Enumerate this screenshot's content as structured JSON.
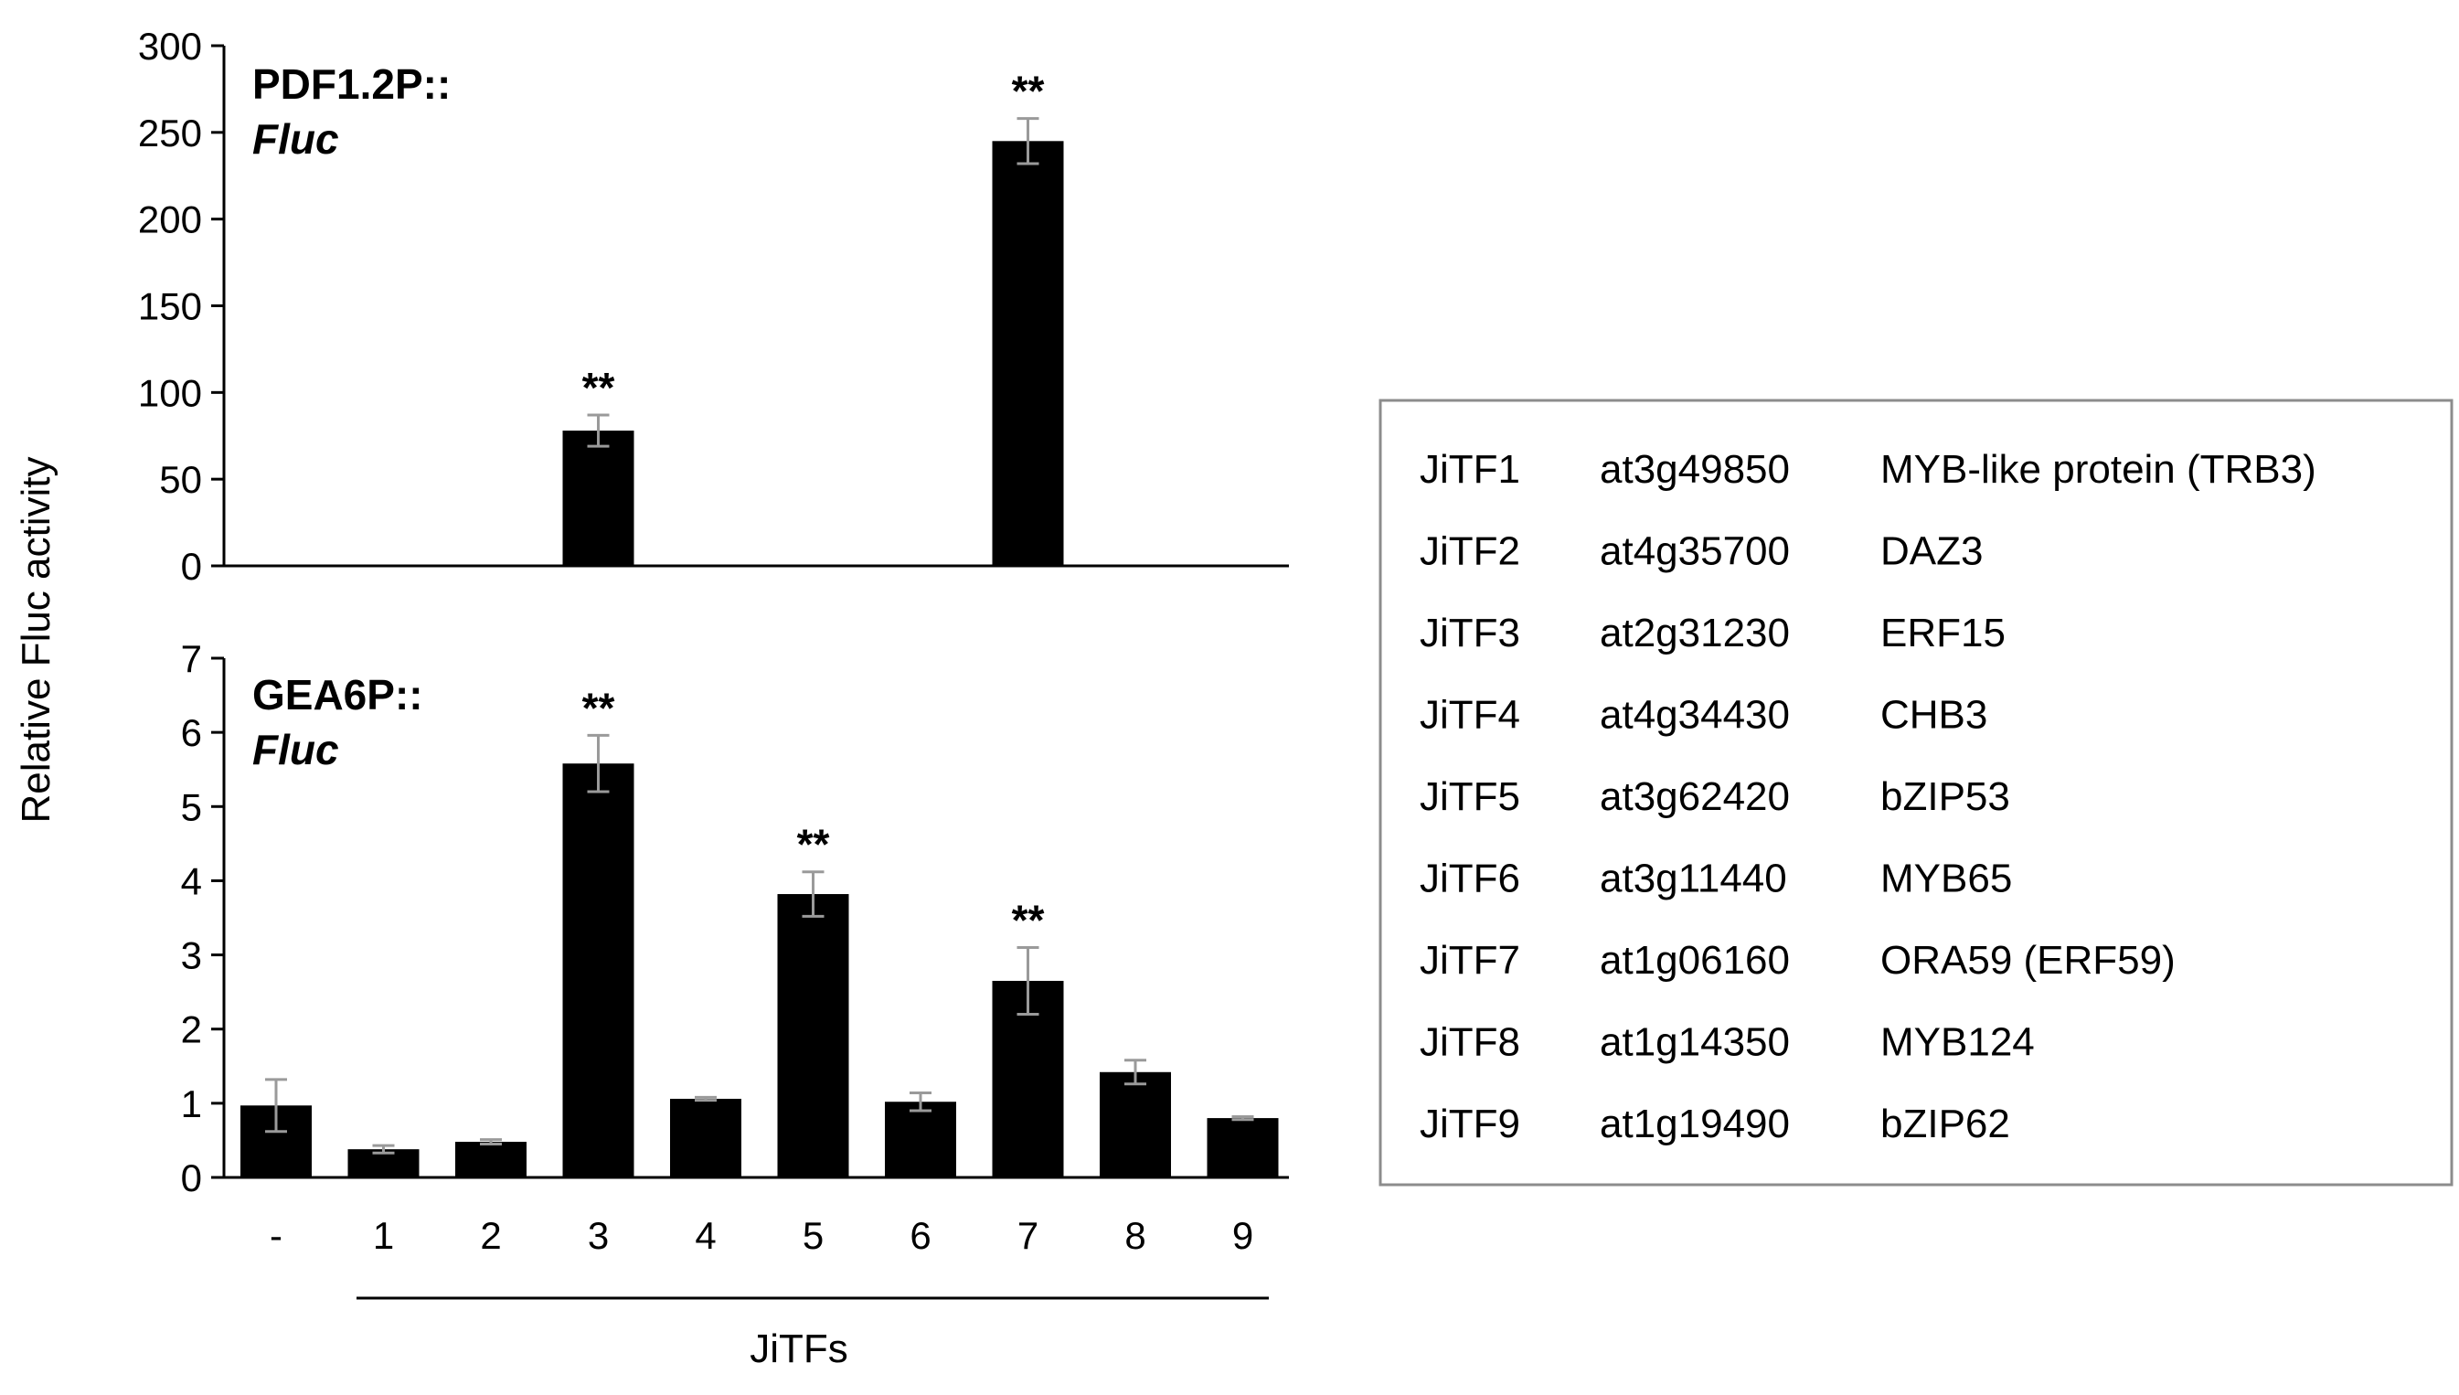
{
  "chart_data": [
    {
      "type": "bar",
      "panel_label": "PDF1.2P::",
      "panel_label_italic": "Fluc",
      "categories": [
        "-",
        "1",
        "2",
        "3",
        "4",
        "5",
        "6",
        "7",
        "8",
        "9"
      ],
      "values": [
        0,
        0,
        0,
        78,
        0,
        0,
        0,
        245,
        0,
        0.5
      ],
      "errors": [
        0,
        0,
        0,
        9,
        0,
        0,
        0,
        13,
        0,
        0
      ],
      "significance": [
        "",
        "",
        "",
        "**",
        "",
        "",
        "",
        "**",
        "",
        ""
      ],
      "ylim": [
        0,
        300
      ],
      "yticks": [
        0,
        50,
        100,
        150,
        200,
        250,
        300
      ],
      "grid": false
    },
    {
      "type": "bar",
      "panel_label": "GEA6P::",
      "panel_label_italic": "Fluc",
      "categories": [
        "-",
        "1",
        "2",
        "3",
        "4",
        "5",
        "6",
        "7",
        "8",
        "9"
      ],
      "values": [
        0.97,
        0.38,
        0.48,
        5.58,
        1.06,
        3.82,
        1.02,
        2.65,
        1.42,
        0.8
      ],
      "errors": [
        0.35,
        0.05,
        0.03,
        0.38,
        0.02,
        0.3,
        0.12,
        0.45,
        0.16,
        0.02
      ],
      "significance": [
        "",
        "",
        "",
        "**",
        "",
        "**",
        "",
        "**",
        "",
        ""
      ],
      "ylim": [
        0,
        7
      ],
      "yticks": [
        0,
        1,
        2,
        3,
        4,
        5,
        6,
        7
      ],
      "grid": false
    }
  ],
  "ylabel": "Relative Fluc activity",
  "xlabel": "JiTFs",
  "colors": {
    "bar": "#000000",
    "errorbar": "#9a9a9a",
    "legend_border": "#8c8c8c"
  },
  "legend": {
    "rows": [
      {
        "tf": "JiTF1",
        "locus": "at3g49850",
        "name": "MYB-like protein (TRB3)"
      },
      {
        "tf": "JiTF2",
        "locus": "at4g35700",
        "name": "DAZ3"
      },
      {
        "tf": "JiTF3",
        "locus": "at2g31230",
        "name": "ERF15"
      },
      {
        "tf": "JiTF4",
        "locus": "at4g34430",
        "name": "CHB3"
      },
      {
        "tf": "JiTF5",
        "locus": "at3g62420",
        "name": "bZIP53"
      },
      {
        "tf": "JiTF6",
        "locus": "at3g11440",
        "name": "MYB65"
      },
      {
        "tf": "JiTF7",
        "locus": "at1g06160",
        "name": "ORA59 (ERF59)"
      },
      {
        "tf": "JiTF8",
        "locus": "at1g14350",
        "name": "MYB124"
      },
      {
        "tf": "JiTF9",
        "locus": "at1g19490",
        "name": "bZIP62"
      }
    ]
  }
}
